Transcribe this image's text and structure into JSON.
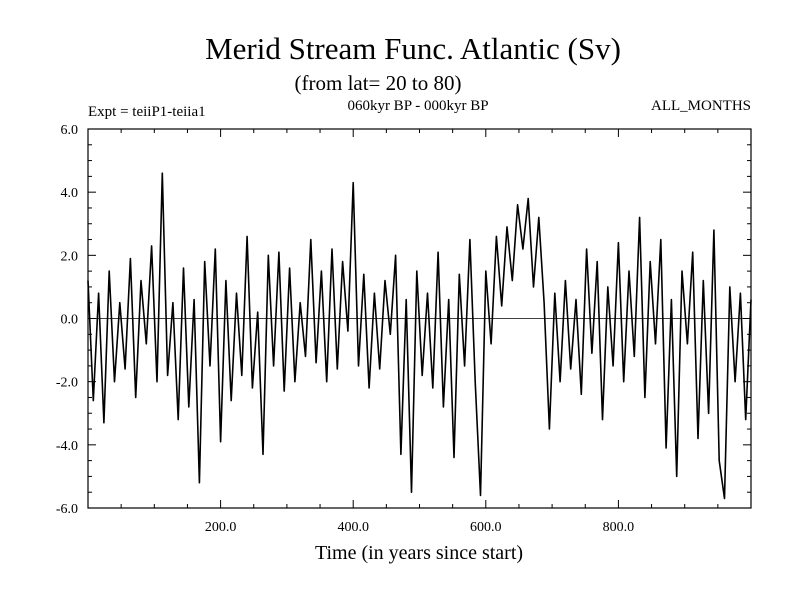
{
  "chart_data": {
    "type": "line",
    "title": "Merid Stream Func. Atlantic (Sv)",
    "subtitle": "(from lat= 20 to 80)",
    "experiment_label": "Expt = teiiP1-teiia1",
    "period_label": "060kyr BP - 000kyr BP",
    "months_label": "ALL_MONTHS",
    "xlabel": "Time (in years since start)",
    "ylabel": "",
    "xlim": [
      0,
      1000
    ],
    "ylim": [
      -6.0,
      6.0
    ],
    "xticks": [
      200,
      400,
      600,
      800
    ],
    "xtick_labels": [
      "200.0",
      "400.0",
      "600.0",
      "800.0"
    ],
    "yticks": [
      -6,
      -4,
      -2,
      0,
      2,
      4,
      6
    ],
    "ytick_labels": [
      "-6.0",
      "-4.0",
      "-2.0",
      "0.0",
      "2.0",
      "4.0",
      "6.0"
    ],
    "zero_line": true,
    "grid": false,
    "line_color": "#000000",
    "series": [
      {
        "x": [
          0,
          8,
          16,
          24,
          32,
          40,
          48,
          56,
          64,
          72,
          80,
          88,
          96,
          104,
          112,
          120,
          128,
          136,
          144,
          152,
          160,
          168,
          176,
          184,
          192,
          200,
          208,
          216,
          224,
          232,
          240,
          248,
          256,
          264,
          272,
          280,
          288,
          296,
          304,
          312,
          320,
          328,
          336,
          344,
          352,
          360,
          368,
          376,
          384,
          392,
          400,
          408,
          416,
          424,
          432,
          440,
          448,
          456,
          464,
          472,
          480,
          488,
          496,
          504,
          512,
          520,
          528,
          536,
          544,
          552,
          560,
          568,
          576,
          584,
          592,
          600,
          608,
          616,
          624,
          632,
          640,
          648,
          656,
          664,
          672,
          680,
          688,
          696,
          704,
          712,
          720,
          728,
          736,
          744,
          752,
          760,
          768,
          776,
          784,
          792,
          800,
          808,
          816,
          824,
          832,
          840,
          848,
          856,
          864,
          872,
          880,
          888,
          896,
          904,
          912,
          920,
          928,
          936,
          944,
          952,
          960,
          968,
          976,
          984,
          992,
          1000
        ],
        "values": [
          1.2,
          -2.6,
          0.8,
          -3.3,
          1.5,
          -2.0,
          0.5,
          -1.6,
          1.9,
          -2.5,
          1.2,
          -0.8,
          2.3,
          -2.0,
          4.6,
          -1.8,
          0.5,
          -3.2,
          1.6,
          -2.8,
          0.6,
          -5.2,
          1.8,
          -1.5,
          2.2,
          -3.9,
          1.2,
          -2.6,
          0.8,
          -1.8,
          2.6,
          -2.2,
          0.2,
          -4.3,
          2.0,
          -1.5,
          2.1,
          -2.3,
          1.6,
          -2.0,
          0.5,
          -1.2,
          2.5,
          -1.4,
          1.5,
          -2.0,
          2.2,
          -1.6,
          1.8,
          -0.4,
          4.3,
          -1.5,
          1.4,
          -2.2,
          0.8,
          -1.6,
          1.2,
          -0.5,
          2.0,
          -4.3,
          0.6,
          -5.5,
          1.5,
          -1.8,
          0.8,
          -2.2,
          2.1,
          -2.8,
          0.6,
          -4.4,
          1.4,
          -1.5,
          2.5,
          -2.0,
          -5.6,
          1.5,
          -0.8,
          2.6,
          0.4,
          2.9,
          1.2,
          3.6,
          2.2,
          3.8,
          1.0,
          3.2,
          0.5,
          -3.5,
          0.8,
          -2.0,
          1.2,
          -1.6,
          0.6,
          -2.4,
          2.2,
          -1.1,
          1.8,
          -3.2,
          1.0,
          -1.5,
          2.4,
          -2.0,
          1.5,
          -1.2,
          3.2,
          -2.5,
          1.8,
          -0.8,
          2.5,
          -4.1,
          0.6,
          -5.0,
          1.5,
          -0.8,
          2.1,
          -3.8,
          1.2,
          -3.0,
          2.8,
          -4.5,
          -5.7,
          1.0,
          -2.0,
          0.8,
          -3.2,
          0.6
        ]
      }
    ]
  }
}
